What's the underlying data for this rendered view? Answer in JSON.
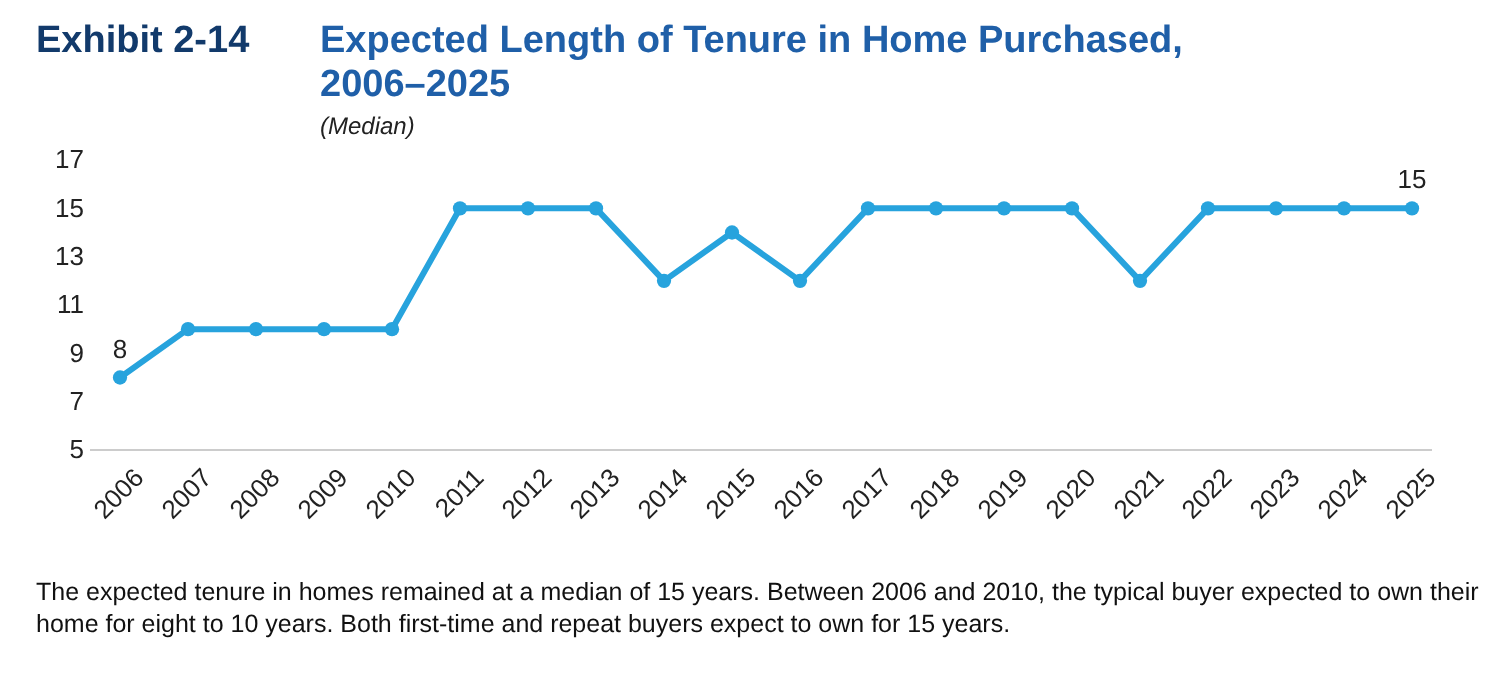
{
  "chart_data": {
    "type": "line",
    "title": "Exhibit 2-14",
    "subtitle": "Expected Length of Tenure in Home Purchased, 2006–2025",
    "annotations": [
      "(Median)",
      "The expected tenure in homes remained at a median of 15 years. Between 2006 and 2010, the typical buyer expected to own their home for eight to 10 years. Both first-time and repeat buyers expect to own for 15 years."
    ],
    "categories": [
      "2006",
      "2007",
      "2008",
      "2009",
      "2010",
      "2011",
      "2012",
      "2013",
      "2014",
      "2015",
      "2016",
      "2017",
      "2018",
      "2019",
      "2020",
      "2021",
      "2022",
      "2023",
      "2024",
      "2025"
    ],
    "series": [
      {
        "color": "#27a3dd",
        "values": [
          8,
          10,
          10,
          10,
          10,
          15,
          15,
          15,
          12,
          14,
          12,
          15,
          15,
          15,
          15,
          12,
          15,
          15,
          15,
          15
        ],
        "value_labels": [
          "8",
          null,
          null,
          null,
          null,
          null,
          null,
          null,
          null,
          null,
          null,
          null,
          null,
          null,
          null,
          null,
          null,
          null,
          null,
          "15"
        ]
      }
    ],
    "ylim": [
      5,
      17
    ],
    "yticks": [
      5,
      7,
      9,
      11,
      13,
      15,
      17
    ],
    "marker": "circle",
    "line_style": "solid",
    "grid": false
  }
}
